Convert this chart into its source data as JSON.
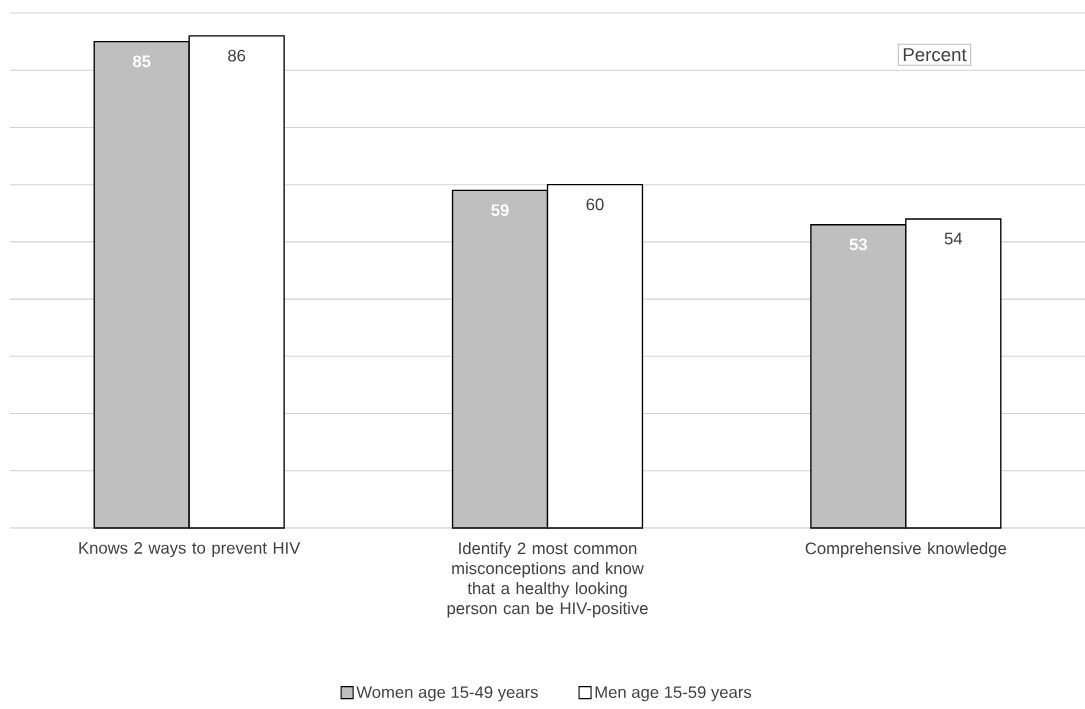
{
  "chart_data": {
    "type": "bar",
    "categories": [
      "Knows 2 ways to prevent HIV",
      "Identify 2 most common misconceptions and know that a healthy looking person can be HIV-positive",
      "Comprehensive knowledge"
    ],
    "series": [
      {
        "name": "Women age 15-49 years",
        "color": "#bfbfbf",
        "values": [
          85,
          59,
          53
        ]
      },
      {
        "name": "Men age 15-59 years",
        "color": "#ffffff",
        "values": [
          86,
          60,
          54
        ]
      }
    ],
    "ylim": [
      0,
      90
    ],
    "yticks": [
      {
        "value": 0,
        "label": null
      },
      {
        "value": 10,
        "label": null
      },
      {
        "value": 20,
        "label": null
      },
      {
        "value": 30,
        "label": null
      },
      {
        "value": 40,
        "label": null
      },
      {
        "value": 50,
        "label": null
      },
      {
        "value": 60,
        "label": null
      },
      {
        "value": 70,
        "label": null
      },
      {
        "value": 80,
        "label": null
      },
      {
        "value": 90,
        "label": null
      }
    ],
    "tick_labels": "x",
    "grid": "y",
    "legend": "bottom",
    "data_labels": true,
    "annotations": [
      "Percent"
    ]
  }
}
